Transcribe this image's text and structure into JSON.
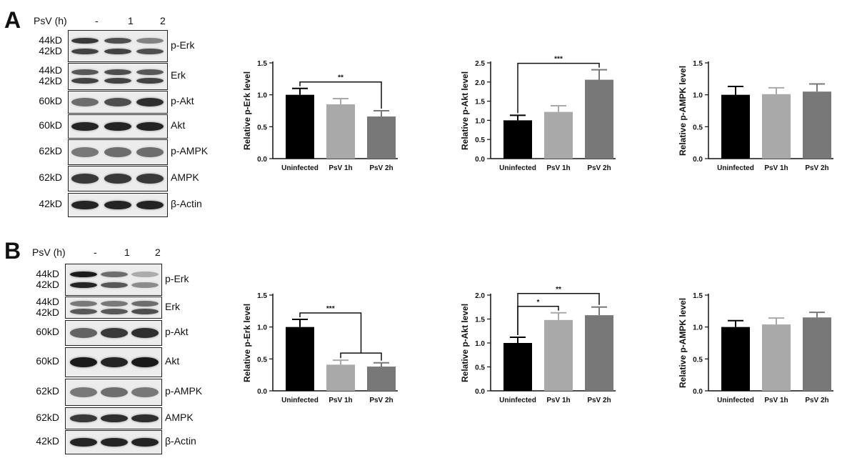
{
  "figure": {
    "panels": [
      {
        "letter": "A",
        "blot": {
          "header_label": "PsV (h)",
          "lanes": [
            "-",
            "1",
            "2"
          ],
          "rows": [
            {
              "protein": "p-Erk",
              "kd": [
                "44kD",
                "42kD"
              ],
              "bands": [
                [
                  0.85,
                  0.8
                ],
                [
                  0.75,
                  0.8
                ],
                [
                  0.5,
                  0.75
                ]
              ]
            },
            {
              "protein": "Erk",
              "kd": [
                "44kD",
                "42kD"
              ],
              "bands": [
                [
                  0.7,
                  0.8
                ],
                [
                  0.75,
                  0.8
                ],
                [
                  0.7,
                  0.8
                ]
              ]
            },
            {
              "protein": "p-Akt",
              "kd": [
                "60kD"
              ],
              "bands": [
                [
                  0.6
                ],
                [
                  0.75
                ],
                [
                  0.9
                ]
              ]
            },
            {
              "protein": "Akt",
              "kd": [
                "60kD"
              ],
              "bands": [
                [
                  0.95
                ],
                [
                  0.95
                ],
                [
                  0.95
                ]
              ]
            },
            {
              "protein": "p-AMPK",
              "kd": [
                "62kD"
              ],
              "bands": [
                [
                  0.55
                ],
                [
                  0.6
                ],
                [
                  0.6
                ]
              ]
            },
            {
              "protein": "AMPK",
              "kd": [
                "62kD"
              ],
              "bands": [
                [
                  0.85
                ],
                [
                  0.85
                ],
                [
                  0.85
                ]
              ]
            },
            {
              "protein": "β-Actin",
              "kd": [
                "42kD"
              ],
              "bands": [
                [
                  0.95
                ],
                [
                  0.95
                ],
                [
                  0.95
                ]
              ]
            }
          ]
        }
      },
      {
        "letter": "B",
        "blot": {
          "header_label": "PsV (h)",
          "lanes": [
            "-",
            "1",
            "2"
          ],
          "rows": [
            {
              "protein": "p-Erk",
              "kd": [
                "44kD",
                "42kD"
              ],
              "bands": [
                [
                  1.0,
                  0.95
                ],
                [
                  0.6,
                  0.7
                ],
                [
                  0.3,
                  0.45
                ]
              ]
            },
            {
              "protein": "Erk",
              "kd": [
                "44kD",
                "42kD"
              ],
              "bands": [
                [
                  0.55,
                  0.7
                ],
                [
                  0.55,
                  0.7
                ],
                [
                  0.6,
                  0.75
                ]
              ]
            },
            {
              "protein": "p-Akt",
              "kd": [
                "60kD"
              ],
              "bands": [
                [
                  0.65
                ],
                [
                  0.85
                ],
                [
                  0.9
                ]
              ]
            },
            {
              "protein": "Akt",
              "kd": [
                "60kD"
              ],
              "bands": [
                [
                  1.0
                ],
                [
                  0.95
                ],
                [
                  1.0
                ]
              ]
            },
            {
              "protein": "p-AMPK",
              "kd": [
                "62kD"
              ],
              "bands": [
                [
                  0.55
                ],
                [
                  0.6
                ],
                [
                  0.55
                ]
              ]
            },
            {
              "protein": "AMPK",
              "kd": [
                "62kD"
              ],
              "bands": [
                [
                  0.85
                ],
                [
                  0.9
                ],
                [
                  0.9
                ]
              ]
            },
            {
              "protein": "β-Actin",
              "kd": [
                "42kD"
              ],
              "bands": [
                [
                  0.95
                ],
                [
                  0.95
                ],
                [
                  0.95
                ]
              ]
            }
          ]
        }
      }
    ]
  },
  "colors": {
    "uninfected": "#000000",
    "psv1h": "#a9a9a9",
    "psv2h": "#787878",
    "axis": "#111111"
  },
  "chart_data": [
    {
      "panel": "A",
      "type": "bar",
      "categories": [
        "Uninfected",
        "PsV 1h",
        "PsV 2h"
      ],
      "values": [
        1.0,
        0.85,
        0.66
      ],
      "errors": [
        0.1,
        0.09,
        0.09
      ],
      "ylabel": "Relative p-Erk level",
      "ylim": [
        0,
        1.5
      ],
      "yticks": [
        "0.0",
        "0.5",
        "1.0",
        "1.5"
      ],
      "significance": [
        {
          "from": 0,
          "to": 2,
          "label": "**"
        }
      ]
    },
    {
      "panel": "A",
      "type": "bar",
      "categories": [
        "Uninfected",
        "PsV 1h",
        "PsV 2h"
      ],
      "values": [
        1.0,
        1.22,
        2.06
      ],
      "errors": [
        0.13,
        0.16,
        0.26
      ],
      "ylabel": "Relative p-Akt level",
      "ylim": [
        0,
        2.5
      ],
      "yticks": [
        "0.0",
        "0.5",
        "1.0",
        "1.5",
        "2.0",
        "2.5"
      ],
      "significance": [
        {
          "from": 0,
          "to": 2,
          "label": "***"
        }
      ]
    },
    {
      "panel": "A",
      "type": "bar",
      "categories": [
        "Uninfected",
        "PsV 1h",
        "PsV 2h"
      ],
      "values": [
        1.0,
        1.01,
        1.05
      ],
      "errors": [
        0.13,
        0.1,
        0.12
      ],
      "ylabel": "Relative p-AMPK level",
      "ylim": [
        0,
        1.5
      ],
      "yticks": [
        "0.0",
        "0.5",
        "1.0",
        "1.5"
      ],
      "significance": []
    },
    {
      "panel": "B",
      "type": "bar",
      "categories": [
        "Uninfected",
        "PsV 1h",
        "PsV 2h"
      ],
      "values": [
        1.0,
        0.41,
        0.38
      ],
      "errors": [
        0.12,
        0.07,
        0.06
      ],
      "ylabel": "Relative p-Erk level",
      "ylim": [
        0,
        1.5
      ],
      "yticks": [
        "0.0",
        "0.5",
        "1.0",
        "1.5"
      ],
      "significance": [
        {
          "from": 0,
          "to": [
            1,
            2
          ],
          "label": "***"
        }
      ]
    },
    {
      "panel": "B",
      "type": "bar",
      "categories": [
        "Uninfected",
        "PsV 1h",
        "PsV 2h"
      ],
      "values": [
        1.0,
        1.48,
        1.58
      ],
      "errors": [
        0.12,
        0.15,
        0.17
      ],
      "ylabel": "Relative p-Akt level",
      "ylim": [
        0,
        2.0
      ],
      "yticks": [
        "0.0",
        "0.5",
        "1.0",
        "1.5",
        "2.0"
      ],
      "significance": [
        {
          "from": 0,
          "to": 1,
          "label": "*"
        },
        {
          "from": 0,
          "to": 2,
          "label": "**"
        }
      ]
    },
    {
      "panel": "B",
      "type": "bar",
      "categories": [
        "Uninfected",
        "PsV 1h",
        "PsV 2h"
      ],
      "values": [
        1.0,
        1.04,
        1.15
      ],
      "errors": [
        0.1,
        0.1,
        0.08
      ],
      "ylabel": "Relative p-AMPK level",
      "ylim": [
        0,
        1.5
      ],
      "yticks": [
        "0.0",
        "0.5",
        "1.0",
        "1.5"
      ],
      "significance": []
    }
  ]
}
